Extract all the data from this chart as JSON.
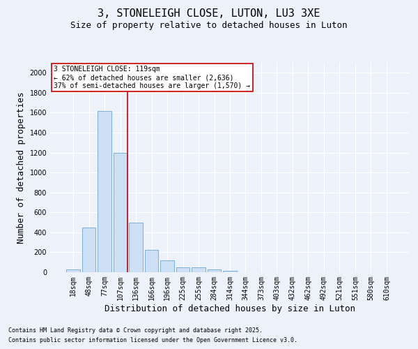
{
  "title": "3, STONELEIGH CLOSE, LUTON, LU3 3XE",
  "subtitle": "Size of property relative to detached houses in Luton",
  "xlabel": "Distribution of detached houses by size in Luton",
  "ylabel": "Number of detached properties",
  "categories": [
    "18sqm",
    "48sqm",
    "77sqm",
    "107sqm",
    "136sqm",
    "166sqm",
    "196sqm",
    "225sqm",
    "255sqm",
    "284sqm",
    "314sqm",
    "344sqm",
    "373sqm",
    "403sqm",
    "432sqm",
    "462sqm",
    "492sqm",
    "521sqm",
    "551sqm",
    "580sqm",
    "610sqm"
  ],
  "values": [
    30,
    450,
    1620,
    1200,
    500,
    225,
    120,
    50,
    50,
    25,
    15,
    0,
    0,
    0,
    0,
    0,
    0,
    0,
    0,
    0,
    0
  ],
  "bar_color": "#ccdff5",
  "bar_edge_color": "#7ab0d8",
  "ylim": [
    0,
    2100
  ],
  "yticks": [
    0,
    200,
    400,
    600,
    800,
    1000,
    1200,
    1400,
    1600,
    1800,
    2000
  ],
  "property_line_x": 3.45,
  "property_line_color": "#cc0000",
  "annotation_text": "3 STONELEIGH CLOSE: 119sqm\n← 62% of detached houses are smaller (2,636)\n37% of semi-detached houses are larger (1,570) →",
  "annotation_box_color": "#ffffff",
  "annotation_box_edge": "#cc0000",
  "footer_line1": "Contains HM Land Registry data © Crown copyright and database right 2025.",
  "footer_line2": "Contains public sector information licensed under the Open Government Licence v3.0.",
  "background_color": "#edf2fa",
  "plot_background": "#edf2fa",
  "grid_color": "#ffffff",
  "title_fontsize": 11,
  "subtitle_fontsize": 9,
  "tick_fontsize": 7,
  "label_fontsize": 9,
  "annotation_fontsize": 7,
  "footer_fontsize": 6
}
